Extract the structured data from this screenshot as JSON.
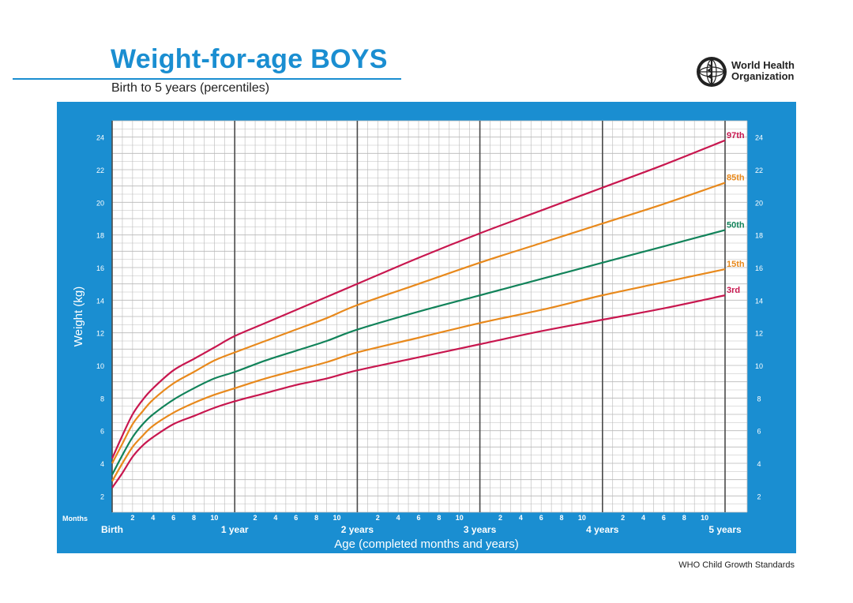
{
  "header": {
    "title": "Weight-for-age BOYS",
    "subtitle": "Birth to 5 years (percentiles)"
  },
  "logo": {
    "name": "World Health Organization",
    "line1": "World Health",
    "line2": "Organization",
    "icon": "who-emblem-icon"
  },
  "footer": {
    "text": "WHO Child Growth Standards"
  },
  "colors": {
    "panel": "#1a8ed1",
    "plot_bg": "#ffffff",
    "grid_minor": "#b8b8b8",
    "grid_year": "#4a4a4a",
    "tick_text": "#ffffff",
    "p97": "#c8174f",
    "p85": "#e8891c",
    "p50": "#12835a",
    "p15": "#e8891c",
    "p3": "#c8174f"
  },
  "chart_data": {
    "type": "line",
    "title": "Weight-for-age BOYS",
    "subtitle": "Birth to 5 years (percentiles)",
    "xlabel": "Age (completed months and years)",
    "ylabel": "Weight (kg)",
    "x_unit_label": "Months",
    "xlim": [
      0,
      60
    ],
    "ylim": [
      1,
      25
    ],
    "grid": true,
    "y_ticks": [
      2,
      4,
      6,
      8,
      10,
      12,
      14,
      16,
      18,
      20,
      22,
      24
    ],
    "x_month_ticks": [
      {
        "month": 2,
        "label": "2"
      },
      {
        "month": 4,
        "label": "4"
      },
      {
        "month": 6,
        "label": "6"
      },
      {
        "month": 8,
        "label": "8"
      },
      {
        "month": 10,
        "label": "10"
      },
      {
        "month": 14,
        "label": "2"
      },
      {
        "month": 16,
        "label": "4"
      },
      {
        "month": 18,
        "label": "6"
      },
      {
        "month": 20,
        "label": "8"
      },
      {
        "month": 22,
        "label": "10"
      },
      {
        "month": 26,
        "label": "2"
      },
      {
        "month": 28,
        "label": "4"
      },
      {
        "month": 30,
        "label": "6"
      },
      {
        "month": 32,
        "label": "8"
      },
      {
        "month": 34,
        "label": "10"
      },
      {
        "month": 38,
        "label": "2"
      },
      {
        "month": 40,
        "label": "4"
      },
      {
        "month": 42,
        "label": "6"
      },
      {
        "month": 44,
        "label": "8"
      },
      {
        "month": 46,
        "label": "10"
      },
      {
        "month": 50,
        "label": "2"
      },
      {
        "month": 52,
        "label": "4"
      },
      {
        "month": 54,
        "label": "6"
      },
      {
        "month": 56,
        "label": "8"
      },
      {
        "month": 58,
        "label": "10"
      }
    ],
    "x_year_ticks": [
      {
        "month": 0,
        "label": "Birth"
      },
      {
        "month": 12,
        "label": "1 year"
      },
      {
        "month": 24,
        "label": "2 years"
      },
      {
        "month": 36,
        "label": "3 years"
      },
      {
        "month": 48,
        "label": "4 years"
      },
      {
        "month": 60,
        "label": "5 years"
      }
    ],
    "x": [
      0,
      1,
      2,
      3,
      4,
      6,
      8,
      10,
      12,
      15,
      18,
      21,
      24,
      30,
      36,
      42,
      48,
      54,
      60
    ],
    "series": [
      {
        "name": "97th",
        "color_key": "p97",
        "values": [
          4.3,
          5.7,
          7.0,
          7.9,
          8.6,
          9.7,
          10.4,
          11.1,
          11.8,
          12.6,
          13.4,
          14.2,
          15.0,
          16.6,
          18.1,
          19.5,
          20.9,
          22.3,
          23.8
        ]
      },
      {
        "name": "85th",
        "color_key": "p85",
        "values": [
          4.0,
          5.2,
          6.4,
          7.2,
          7.9,
          8.9,
          9.6,
          10.3,
          10.8,
          11.5,
          12.2,
          12.9,
          13.7,
          15.0,
          16.3,
          17.5,
          18.7,
          19.9,
          21.2
        ]
      },
      {
        "name": "50th",
        "color_key": "p50",
        "values": [
          3.3,
          4.5,
          5.6,
          6.4,
          7.0,
          7.9,
          8.6,
          9.2,
          9.6,
          10.3,
          10.9,
          11.5,
          12.2,
          13.3,
          14.3,
          15.3,
          16.3,
          17.3,
          18.3
        ]
      },
      {
        "name": "15th",
        "color_key": "p15",
        "values": [
          2.9,
          4.0,
          5.0,
          5.7,
          6.3,
          7.1,
          7.7,
          8.2,
          8.6,
          9.2,
          9.7,
          10.2,
          10.8,
          11.7,
          12.6,
          13.4,
          14.3,
          15.1,
          15.9
        ]
      },
      {
        "name": "3rd",
        "color_key": "p3",
        "values": [
          2.5,
          3.4,
          4.4,
          5.1,
          5.6,
          6.4,
          6.9,
          7.4,
          7.8,
          8.3,
          8.8,
          9.2,
          9.7,
          10.5,
          11.3,
          12.1,
          12.8,
          13.5,
          14.3
        ]
      }
    ]
  }
}
